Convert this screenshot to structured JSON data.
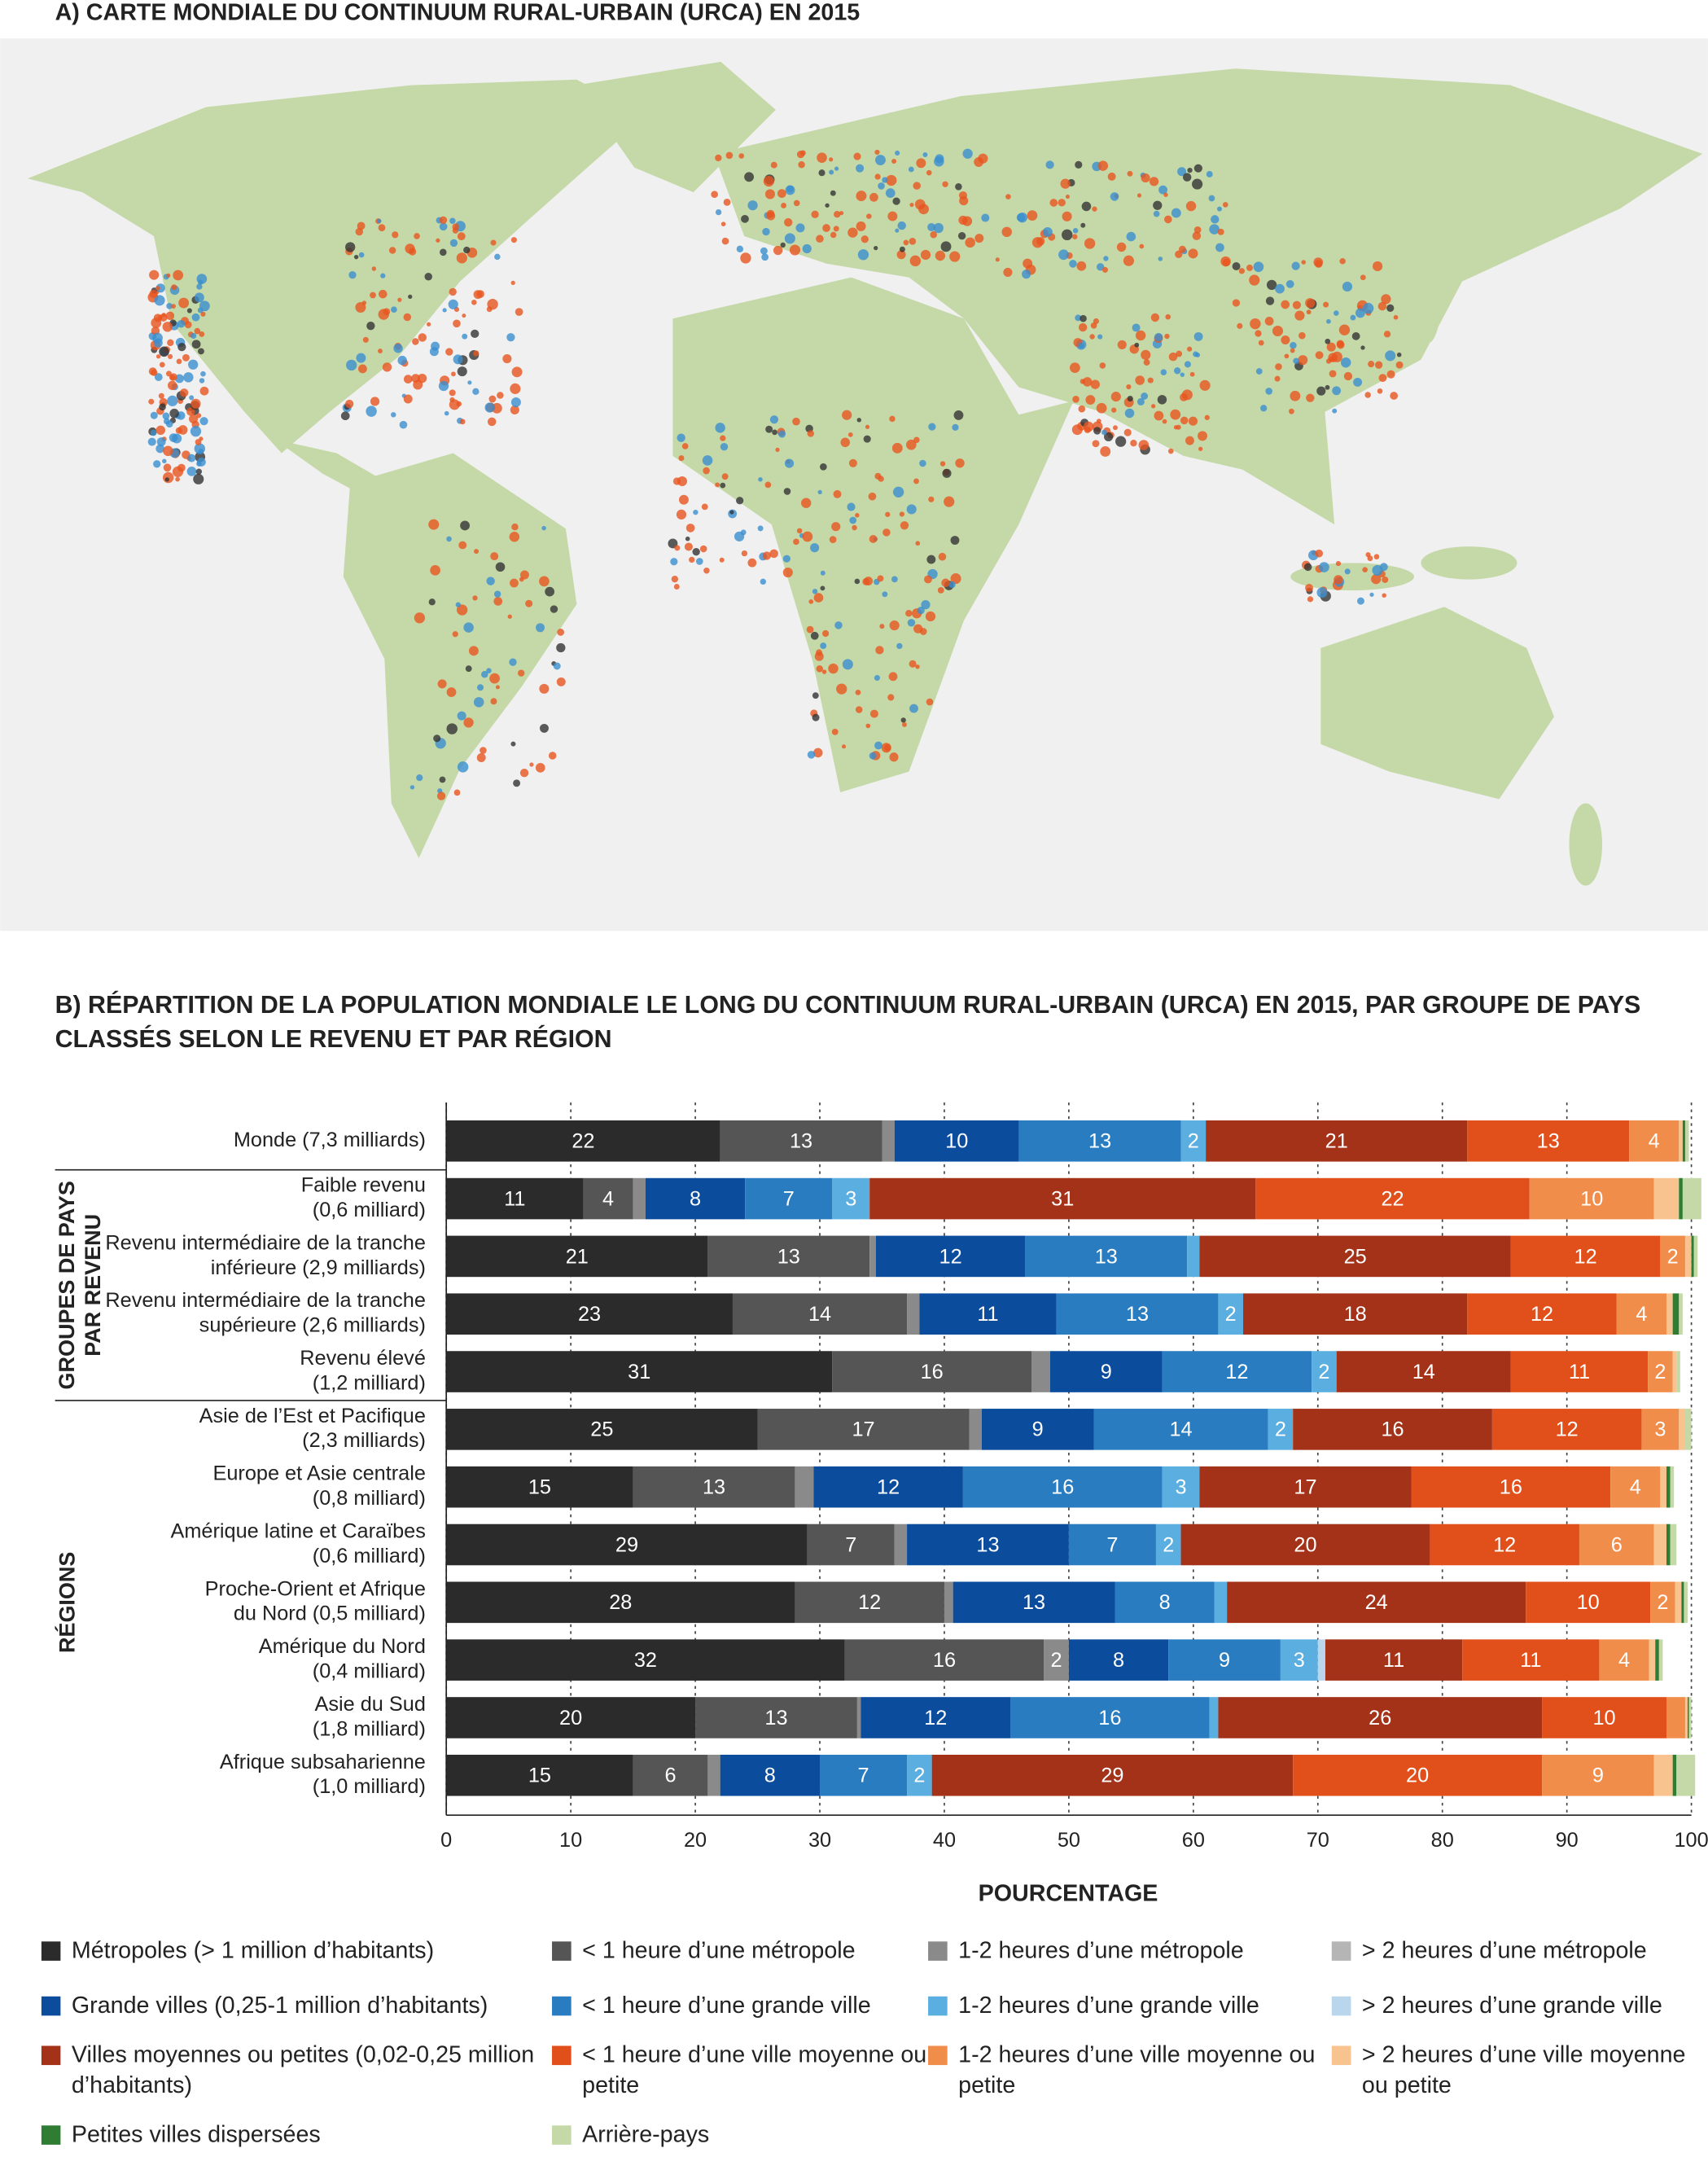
{
  "map": {
    "title": "A) CARTE MONDIALE DU CONTINUUM RURAL-URBAIN (URCA) EN 2015"
  },
  "chart_data": {
    "type": "stacked-barh",
    "title": [
      "B) RÉPARTITION DE LA POPULATION MONDIALE LE LONG DU CONTINUUM RURAL-URBAIN (URCA) EN 2015, PAR GROUPE DE PAYS",
      "CLASSÉS SELON LE REVENU ET PAR RÉGION"
    ],
    "groups": [
      [
        "GROUPES DE PAYS",
        "PAR REVENU"
      ],
      [
        "RÉGIONS"
      ]
    ],
    "categories": [
      [
        "Monde (7,3 milliards)"
      ],
      [
        "Faible revenu",
        "(0,6 milliard)"
      ],
      [
        "Revenu intermédiaire de la tranche",
        "inférieure (2,9 milliards)"
      ],
      [
        "Revenu intermédiaire de la tranche",
        "supérieure (2,6 milliards)"
      ],
      [
        "Revenu élevé",
        "(1,2 milliard)"
      ],
      [
        "Asie de l’Est et Pacifique",
        "(2,3 milliards)"
      ],
      [
        "Europe et Asie centrale",
        "(0,8 milliard)"
      ],
      [
        "Amérique latine et Caraïbes",
        "(0,6 milliard)"
      ],
      [
        "Proche-Orient et Afrique",
        "du Nord (0,5 milliard)"
      ],
      [
        "Amérique du Nord",
        "(0,4 milliard)"
      ],
      [
        "Asie du Sud",
        "(1,8 milliard)"
      ],
      [
        "Afrique subsaharienne",
        "(1,0 milliard)"
      ]
    ],
    "xlabel": "POURCENTAGE",
    "xlim": [
      0,
      100
    ],
    "xticks": [
      0,
      10,
      20,
      30,
      40,
      50,
      60,
      70,
      80,
      90,
      100
    ],
    "grid": true,
    "series": [
      {
        "name": "Métropoles (> 1 million d’habitants)",
        "color": "#2b2b2b",
        "values": [
          22,
          11,
          21,
          23,
          31,
          25,
          15,
          29,
          28,
          32,
          20,
          15
        ]
      },
      {
        "name": "< 1 heure d’une métropole",
        "color": "#555555",
        "values": [
          13,
          4,
          13,
          14,
          16,
          17,
          13,
          7,
          12,
          16,
          13,
          6
        ]
      },
      {
        "name": "1-2 heures d’une métropole",
        "color": "#8a8a8a",
        "values": [
          1,
          1,
          0.5,
          1,
          1.5,
          1,
          1.5,
          1,
          0.7,
          2,
          0.3,
          1
        ],
        "value_labels": [
          null,
          null,
          null,
          null,
          null,
          null,
          null,
          null,
          null,
          "2",
          null,
          null
        ]
      },
      {
        "name": "> 2 heures d’une métropole",
        "color": "#b5b5b5",
        "values": [
          0,
          0,
          0,
          0,
          0,
          0,
          0,
          0,
          0,
          0,
          0,
          0
        ],
        "value_labels": [
          null,
          null,
          null,
          null,
          null,
          null,
          null,
          null,
          null,
          null,
          null,
          null
        ]
      },
      {
        "name": "Grande villes (0,25-1 million d’habitants)",
        "color": "#0b4c9c",
        "values": [
          10,
          8,
          12,
          11,
          9,
          9,
          12,
          13,
          13,
          8,
          12,
          8
        ]
      },
      {
        "name": "< 1 heure d’une grande ville",
        "color": "#2a7cc0",
        "values": [
          13,
          7,
          13,
          13,
          12,
          14,
          16,
          7,
          8,
          9,
          16,
          7
        ]
      },
      {
        "name": "1-2 heures d’une grande ville",
        "color": "#5aaee0",
        "values": [
          2,
          3,
          1,
          2,
          2,
          2,
          3,
          2,
          1,
          3,
          0.7,
          2
        ],
        "value_labels": [
          "2",
          "3",
          null,
          "2",
          "2",
          "2",
          "3",
          "2",
          null,
          "3",
          null,
          "2"
        ]
      },
      {
        "name": "> 2 heures d’une grande ville",
        "color": "#b9d6ec",
        "values": [
          0,
          0,
          0,
          0,
          0,
          0,
          0,
          0,
          0,
          0.6,
          0,
          0
        ],
        "value_labels": [
          null,
          null,
          null,
          null,
          null,
          null,
          null,
          null,
          null,
          null,
          null,
          null
        ]
      },
      {
        "name": "Villes moyennes ou petites (0,02-0,25 million d’habitants)",
        "color": "#a33219",
        "values": [
          21,
          31,
          25,
          18,
          14,
          16,
          17,
          20,
          24,
          11,
          26,
          29
        ]
      },
      {
        "name": "< 1 heure d’une ville moyenne ou petite",
        "color": "#e1501b",
        "values": [
          13,
          22,
          12,
          12,
          11,
          12,
          16,
          12,
          10,
          11,
          10,
          20
        ]
      },
      {
        "name": "1-2 heures d’une ville moyenne ou petite",
        "color": "#f08d4a",
        "values": [
          4,
          10,
          2,
          4,
          2,
          3,
          4,
          6,
          2,
          4,
          1.5,
          9
        ],
        "value_labels": [
          "4",
          "10",
          "2",
          "4",
          "2",
          "3",
          "4",
          "6",
          "2",
          "4",
          null,
          "9"
        ]
      },
      {
        "name": "> 2 heures d’une ville moyenne ou petite",
        "color": "#f8c38f",
        "values": [
          0.3,
          2,
          0.5,
          0.5,
          0.3,
          0.5,
          0.5,
          1,
          0.5,
          0.5,
          0.2,
          1.5
        ],
        "value_labels": [
          null,
          null,
          null,
          null,
          null,
          null,
          null,
          null,
          null,
          null,
          null,
          null
        ]
      },
      {
        "name": "Petites villes dispersées",
        "color": "#2e7d32",
        "values": [
          0.2,
          0.3,
          0.2,
          0.5,
          0,
          0,
          0.3,
          0.3,
          0.2,
          0.3,
          0.1,
          0.3
        ],
        "value_labels": [
          null,
          null,
          null,
          null,
          null,
          null,
          null,
          null,
          null,
          null,
          null,
          null
        ]
      },
      {
        "name": "Arrière-pays",
        "color": "#c5d9a8",
        "values": [
          0.3,
          1.5,
          0.3,
          0.3,
          0.3,
          0.5,
          0.3,
          0.5,
          0.3,
          0.3,
          0.2,
          1.5
        ],
        "value_labels": [
          null,
          null,
          null,
          null,
          null,
          null,
          null,
          null,
          null,
          null,
          null,
          null
        ]
      }
    ]
  }
}
